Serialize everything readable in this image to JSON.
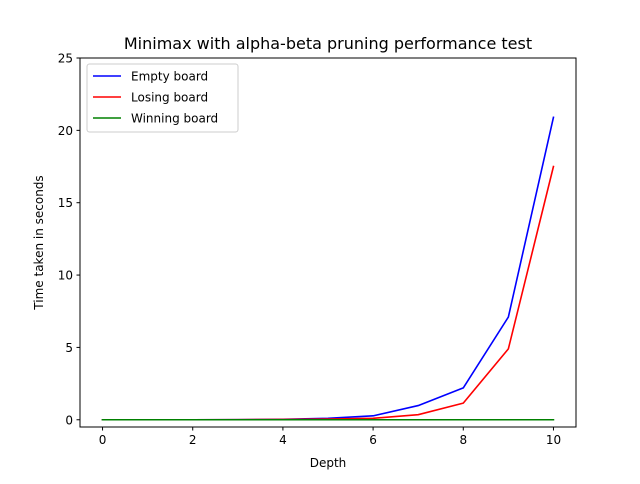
{
  "chart_data": {
    "type": "line",
    "title": "Minimax with alpha-beta pruning performance test",
    "xlabel": "Depth",
    "ylabel": "Time taken in seconds",
    "xlim": [
      -0.5,
      10.5
    ],
    "ylim": [
      -0.5,
      25
    ],
    "xticks": [
      0,
      2,
      4,
      6,
      8,
      10
    ],
    "yticks": [
      0,
      5,
      10,
      15,
      20,
      25
    ],
    "grid": false,
    "legend_position": "top-left",
    "x": [
      0,
      1,
      2,
      3,
      4,
      5,
      6,
      7,
      8,
      9,
      10
    ],
    "series": [
      {
        "name": "Empty board",
        "color": "#0000ff",
        "values": [
          0,
          0,
          0,
          0.01,
          0.03,
          0.1,
          0.27,
          0.98,
          2.2,
          7.1,
          20.9
        ]
      },
      {
        "name": "Losing board",
        "color": "#ff0000",
        "values": [
          0,
          0,
          0,
          0.01,
          0.02,
          0.05,
          0.1,
          0.35,
          1.15,
          4.9,
          17.5
        ]
      },
      {
        "name": "Winning board",
        "color": "#008000",
        "values": [
          0,
          0,
          0,
          0,
          0,
          0,
          0,
          0,
          0,
          0,
          0
        ]
      }
    ]
  }
}
